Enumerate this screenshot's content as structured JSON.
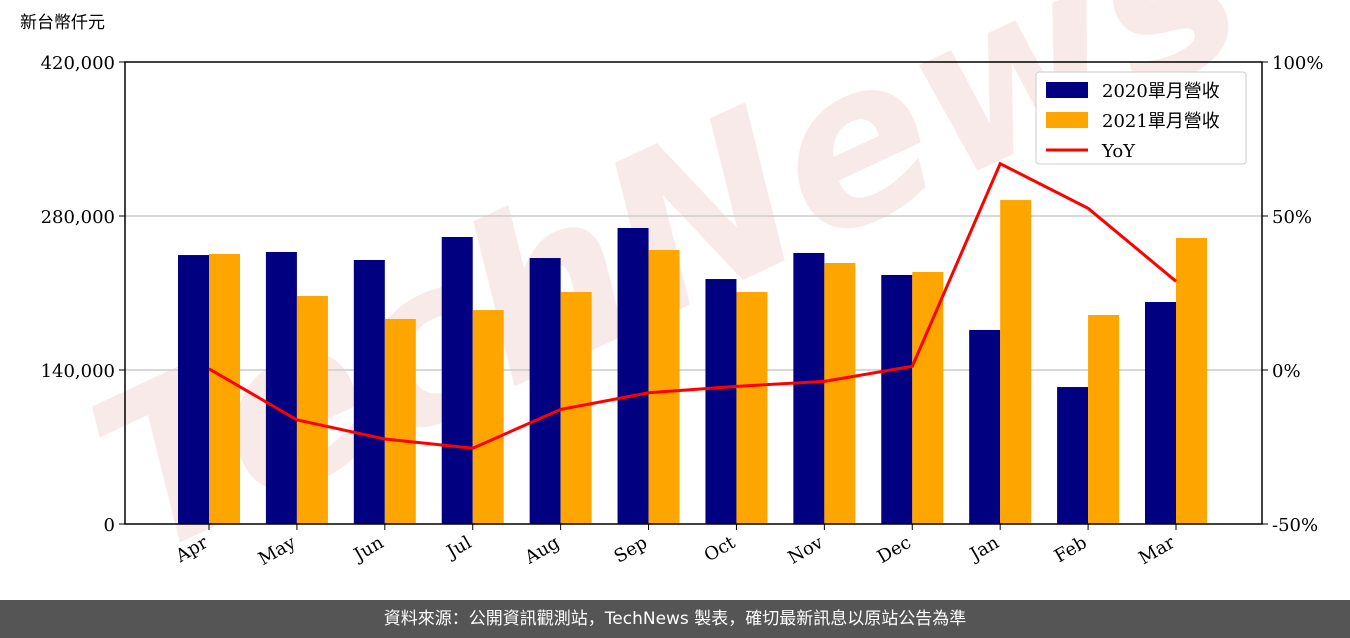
{
  "chart_data": {
    "type": "bar_line",
    "unit_label": "新台幣仟元",
    "watermark": "TechNews",
    "categories": [
      "Apr",
      "May",
      "Jun",
      "Jul",
      "Aug",
      "Sep",
      "Oct",
      "Nov",
      "Dec",
      "Jan",
      "Feb",
      "Mar"
    ],
    "series": [
      {
        "name": "2020單月營收",
        "color": "#000080",
        "type": "bar",
        "values": [
          244500,
          247300,
          240000,
          260900,
          241800,
          269100,
          222700,
          246400,
          226400,
          176400,
          124500,
          201800
        ]
      },
      {
        "name": "2021單月營收",
        "color": "#ffa500",
        "type": "bar",
        "values": [
          245500,
          207300,
          186400,
          194500,
          210900,
          249100,
          210900,
          237300,
          229100,
          294500,
          190000,
          260000
        ]
      },
      {
        "name": "YoY",
        "color": "#ff0000",
        "type": "line",
        "axis": "y2",
        "values": [
          0.4,
          -16.2,
          -22.4,
          -25.4,
          -12.8,
          -7.4,
          -5.3,
          -3.7,
          1.2,
          67,
          52.5,
          28.8
        ]
      }
    ],
    "ylim": [
      0,
      420000
    ],
    "yticks": [
      0,
      {
        "value": 140000,
        "label": "140,000"
      },
      {
        "value": 280000,
        "label": "280,000"
      },
      {
        "value": 420000,
        "label": "420,000"
      }
    ],
    "y2lim": [
      -50,
      100
    ],
    "y2ticks": [
      {
        "value": -50,
        "label": "-50%"
      },
      {
        "value": 0,
        "label": "0%"
      },
      {
        "value": 50,
        "label": "50%"
      },
      {
        "value": 100,
        "label": "100%"
      }
    ],
    "grid": true,
    "legend": "upper-right",
    "footer": "資料來源：公開資訊觀測站，TechNews 製表，確切最新訊息以原站公告為準"
  }
}
